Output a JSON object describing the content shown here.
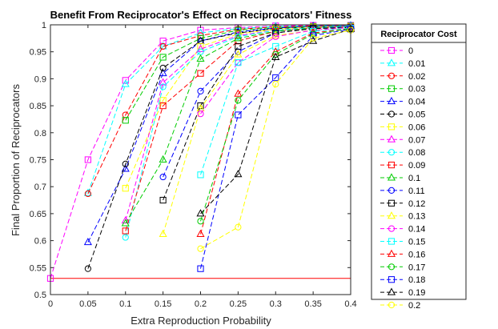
{
  "figure": {
    "title": "Benefit From Reciprocator's Effect on Reciprocators' Fitness",
    "xlabel": "Extra Reproduction Probability",
    "ylabel": "Final Proportion of Reciprocators",
    "legend_title": "Reciprocator Cost"
  },
  "chart_data": {
    "type": "line",
    "title": "Benefit From Reciprocator's Effect on Reciprocators' Fitness",
    "xlabel": "Extra Reproduction Probability",
    "ylabel": "Final Proportion of Reciprocators",
    "xlim": [
      0,
      0.4
    ],
    "ylim": [
      0.5,
      1
    ],
    "xticks": [
      "0",
      "0.05",
      "0.1",
      "0.15",
      "0.2",
      "0.25",
      "0.3",
      "0.35",
      "0.4"
    ],
    "yticks": [
      "0.5",
      "0.55",
      "0.6",
      "0.65",
      "0.7",
      "0.75",
      "0.8",
      "0.85",
      "0.9",
      "0.95",
      "1"
    ],
    "grid": false,
    "legend_title": "Reciprocator Cost",
    "legend_position": "outside-right",
    "baseline": {
      "y": 0.53,
      "color": "#ff0000"
    },
    "series": [
      {
        "name": "0",
        "color": "#ff00ff",
        "marker": "square",
        "points": [
          [
            0,
            0.53
          ],
          [
            0.05,
            0.75
          ],
          [
            0.1,
            0.897
          ],
          [
            0.15,
            0.97
          ],
          [
            0.2,
            0.99
          ],
          [
            0.25,
            0.995
          ],
          [
            0.3,
            0.998
          ],
          [
            0.35,
            0.999
          ],
          [
            0.4,
            0.999
          ]
        ]
      },
      {
        "name": "0.01",
        "color": "#00ffff",
        "marker": "triangle",
        "points": [
          [
            0.05,
            0.688
          ],
          [
            0.1,
            0.89
          ],
          [
            0.15,
            0.96
          ],
          [
            0.2,
            0.985
          ],
          [
            0.25,
            0.993
          ],
          [
            0.3,
            0.997
          ],
          [
            0.35,
            0.998
          ],
          [
            0.4,
            0.999
          ]
        ]
      },
      {
        "name": "0.02",
        "color": "#ff0000",
        "marker": "circle",
        "points": [
          [
            0.05,
            0.687
          ],
          [
            0.1,
            0.833
          ],
          [
            0.15,
            0.96
          ],
          [
            0.2,
            0.98
          ],
          [
            0.25,
            0.992
          ],
          [
            0.3,
            0.996
          ],
          [
            0.35,
            0.998
          ],
          [
            0.4,
            0.998
          ]
        ]
      },
      {
        "name": "0.03",
        "color": "#00cc00",
        "marker": "square",
        "points": [
          [
            0.1,
            0.823
          ],
          [
            0.15,
            0.94
          ],
          [
            0.2,
            0.975
          ],
          [
            0.25,
            0.99
          ],
          [
            0.3,
            0.995
          ],
          [
            0.35,
            0.997
          ],
          [
            0.4,
            0.998
          ]
        ]
      },
      {
        "name": "0.04",
        "color": "#0000ff",
        "marker": "triangle",
        "points": [
          [
            0.05,
            0.597
          ],
          [
            0.1,
            0.733
          ],
          [
            0.15,
            0.91
          ],
          [
            0.2,
            0.97
          ],
          [
            0.25,
            0.987
          ],
          [
            0.3,
            0.994
          ],
          [
            0.35,
            0.997
          ],
          [
            0.4,
            0.998
          ]
        ]
      },
      {
        "name": "0.05",
        "color": "#000000",
        "marker": "circle",
        "points": [
          [
            0.05,
            0.548
          ],
          [
            0.1,
            0.742
          ],
          [
            0.15,
            0.92
          ],
          [
            0.2,
            0.97
          ],
          [
            0.25,
            0.985
          ],
          [
            0.3,
            0.993
          ],
          [
            0.35,
            0.996
          ],
          [
            0.4,
            0.997
          ]
        ]
      },
      {
        "name": "0.06",
        "color": "#ffff00",
        "marker": "square",
        "points": [
          [
            0.1,
            0.697
          ],
          [
            0.15,
            0.86
          ],
          [
            0.2,
            0.96
          ],
          [
            0.25,
            0.983
          ],
          [
            0.3,
            0.992
          ],
          [
            0.35,
            0.996
          ],
          [
            0.4,
            0.997
          ]
        ]
      },
      {
        "name": "0.07",
        "color": "#ff00ff",
        "marker": "triangle",
        "points": [
          [
            0.1,
            0.637
          ],
          [
            0.15,
            0.893
          ],
          [
            0.2,
            0.955
          ],
          [
            0.25,
            0.98
          ],
          [
            0.3,
            0.99
          ],
          [
            0.35,
            0.995
          ],
          [
            0.4,
            0.997
          ]
        ]
      },
      {
        "name": "0.08",
        "color": "#00ffff",
        "marker": "circle",
        "points": [
          [
            0.1,
            0.606
          ],
          [
            0.15,
            0.885
          ],
          [
            0.2,
            0.95
          ],
          [
            0.25,
            0.978
          ],
          [
            0.3,
            0.99
          ],
          [
            0.35,
            0.995
          ],
          [
            0.4,
            0.997
          ]
        ]
      },
      {
        "name": "0.09",
        "color": "#ff0000",
        "marker": "square",
        "points": [
          [
            0.1,
            0.618
          ],
          [
            0.15,
            0.85
          ],
          [
            0.2,
            0.91
          ],
          [
            0.25,
            0.97
          ],
          [
            0.3,
            0.988
          ],
          [
            0.35,
            0.994
          ],
          [
            0.4,
            0.996
          ]
        ]
      },
      {
        "name": "0.1",
        "color": "#00cc00",
        "marker": "triangle",
        "points": [
          [
            0.1,
            0.632
          ],
          [
            0.15,
            0.75
          ],
          [
            0.2,
            0.937
          ],
          [
            0.25,
            0.975
          ],
          [
            0.3,
            0.988
          ],
          [
            0.35,
            0.994
          ],
          [
            0.4,
            0.996
          ]
        ]
      },
      {
        "name": "0.11",
        "color": "#0000ff",
        "marker": "circle",
        "points": [
          [
            0.15,
            0.718
          ],
          [
            0.2,
            0.877
          ],
          [
            0.25,
            0.95
          ],
          [
            0.3,
            0.985
          ],
          [
            0.35,
            0.993
          ],
          [
            0.4,
            0.996
          ]
        ]
      },
      {
        "name": "0.12",
        "color": "#000000",
        "marker": "square",
        "points": [
          [
            0.15,
            0.675
          ],
          [
            0.2,
            0.85
          ],
          [
            0.25,
            0.96
          ],
          [
            0.3,
            0.985
          ],
          [
            0.35,
            0.993
          ],
          [
            0.4,
            0.995
          ]
        ]
      },
      {
        "name": "0.13",
        "color": "#ffff00",
        "marker": "triangle",
        "points": [
          [
            0.15,
            0.612
          ],
          [
            0.2,
            0.845
          ],
          [
            0.25,
            0.945
          ],
          [
            0.3,
            0.98
          ],
          [
            0.35,
            0.99
          ],
          [
            0.4,
            0.995
          ]
        ]
      },
      {
        "name": "0.14",
        "color": "#ff00ff",
        "marker": "circle",
        "points": [
          [
            0.2,
            0.835
          ],
          [
            0.25,
            0.93
          ],
          [
            0.3,
            0.978
          ],
          [
            0.35,
            0.99
          ],
          [
            0.4,
            0.995
          ]
        ]
      },
      {
        "name": "0.15",
        "color": "#00ffff",
        "marker": "square",
        "points": [
          [
            0.2,
            0.722
          ],
          [
            0.25,
            0.93
          ],
          [
            0.3,
            0.96
          ],
          [
            0.35,
            0.988
          ],
          [
            0.4,
            0.994
          ]
        ]
      },
      {
        "name": "0.16",
        "color": "#ff0000",
        "marker": "triangle",
        "points": [
          [
            0.2,
            0.612
          ],
          [
            0.25,
            0.872
          ],
          [
            0.3,
            0.95
          ],
          [
            0.35,
            0.985
          ],
          [
            0.4,
            0.993
          ]
        ]
      },
      {
        "name": "0.17",
        "color": "#00cc00",
        "marker": "circle",
        "points": [
          [
            0.2,
            0.636
          ],
          [
            0.25,
            0.86
          ],
          [
            0.3,
            0.945
          ],
          [
            0.35,
            0.983
          ],
          [
            0.4,
            0.993
          ]
        ]
      },
      {
        "name": "0.18",
        "color": "#0000ff",
        "marker": "square",
        "points": [
          [
            0.2,
            0.548
          ],
          [
            0.25,
            0.833
          ],
          [
            0.3,
            0.902
          ],
          [
            0.35,
            0.98
          ],
          [
            0.4,
            0.992
          ]
        ]
      },
      {
        "name": "0.19",
        "color": "#000000",
        "marker": "triangle",
        "points": [
          [
            0.2,
            0.65
          ],
          [
            0.25,
            0.723
          ],
          [
            0.3,
            0.94
          ],
          [
            0.35,
            0.97
          ],
          [
            0.4,
            0.992
          ]
        ]
      },
      {
        "name": "0.2",
        "color": "#ffff00",
        "marker": "circle",
        "points": [
          [
            0.2,
            0.585
          ],
          [
            0.25,
            0.625
          ],
          [
            0.3,
            0.89
          ],
          [
            0.35,
            0.975
          ],
          [
            0.4,
            0.99
          ]
        ]
      }
    ]
  }
}
